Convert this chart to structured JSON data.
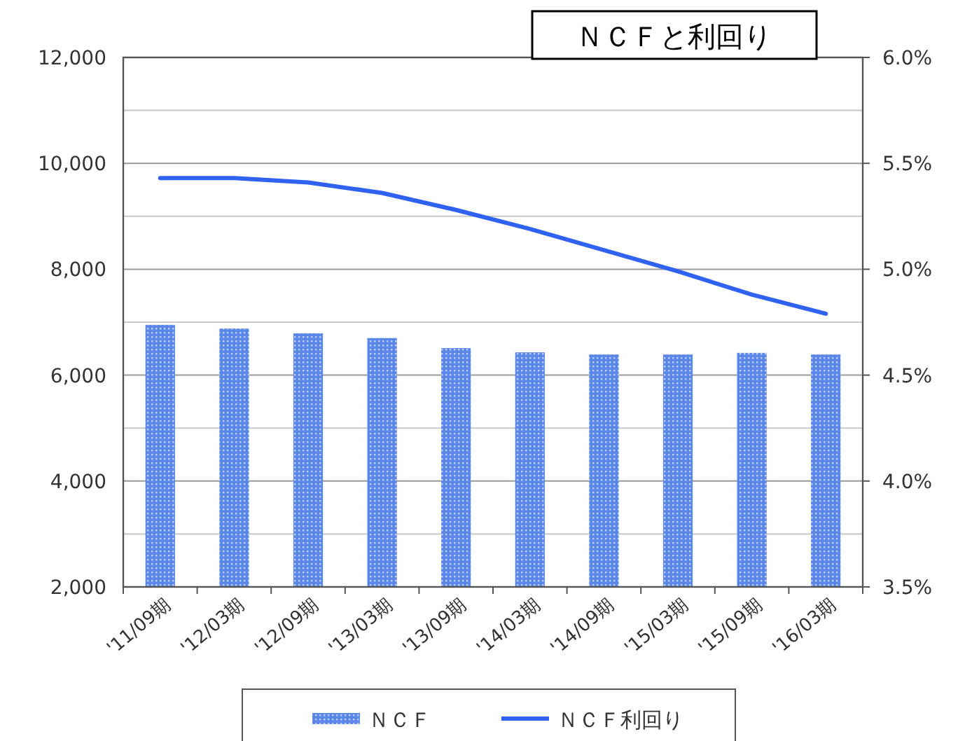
{
  "chart_data": {
    "type": "bar",
    "title": "ＮＣＦと利回り",
    "categories": [
      "'11/09期",
      "'12/03期",
      "'12/09期",
      "'13/03期",
      "'13/09期",
      "'14/03期",
      "'14/09期",
      "'15/03期",
      "'15/09期",
      "'16/03期"
    ],
    "series": [
      {
        "name": "ＮＣＦ",
        "color": "#5b87e6",
        "values": [
          6950,
          6880,
          6790,
          6700,
          6510,
          6430,
          6390,
          6390,
          6420,
          6390
        ]
      },
      {
        "name": "ＮＣＦ利回り",
        "type": "line",
        "axis": "y2",
        "color": "#2f62f0",
        "values": [
          5.43,
          5.43,
          5.41,
          5.36,
          5.28,
          5.19,
          5.09,
          4.99,
          4.88,
          4.79
        ]
      }
    ],
    "ylim": [
      2000,
      12000
    ],
    "yticks": [
      {
        "value": 2000,
        "label": "2,000"
      },
      {
        "value": 3000,
        "label": null
      },
      {
        "value": 4000,
        "label": "4,000"
      },
      {
        "value": 5000,
        "label": null
      },
      {
        "value": 6000,
        "label": "6,000"
      },
      {
        "value": 7000,
        "label": null
      },
      {
        "value": 8000,
        "label": "8,000"
      },
      {
        "value": 9000,
        "label": null
      },
      {
        "value": 10000,
        "label": "10,000"
      },
      {
        "value": 11000,
        "label": null
      },
      {
        "value": 12000,
        "label": "12,000"
      }
    ],
    "y2lim": [
      3.5,
      6.0
    ],
    "y2ticks": [
      {
        "value": 3.5,
        "label": "3.5%"
      },
      {
        "value": 4.0,
        "label": "4.0%"
      },
      {
        "value": 4.5,
        "label": "4.5%"
      },
      {
        "value": 5.0,
        "label": "5.0%"
      },
      {
        "value": 5.5,
        "label": "5.5%"
      },
      {
        "value": 6.0,
        "label": "6.0%"
      }
    ],
    "grid": "y",
    "legend": "bottom"
  }
}
